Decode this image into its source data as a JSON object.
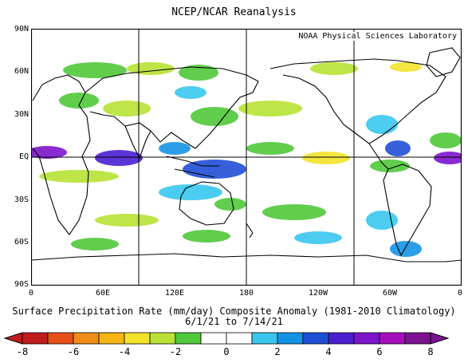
{
  "header": {
    "title": "NCEP/NCAR Reanalysis"
  },
  "map": {
    "lab_label": "NOAA Physical Sciences Laboratory",
    "lat_labels": [
      "90N",
      "60N",
      "30N",
      "EQ",
      "30S",
      "60S",
      "90S"
    ],
    "lon_labels": [
      "0",
      "60E",
      "120E",
      "180",
      "120W",
      "60W",
      "0"
    ],
    "grid": {
      "lon_lines": [
        60,
        180,
        300
      ],
      "lat_lines": [
        0
      ]
    }
  },
  "caption": {
    "line1": "Surface Precipitation Rate (mm/day) Composite Anomaly (1981-2010 Climatology)",
    "line2": "6/1/21  to 7/14/21"
  },
  "colorbar": {
    "tick_labels": [
      "-8",
      "-6",
      "-4",
      "-2",
      "0",
      "2",
      "4",
      "6",
      "8"
    ],
    "colors": [
      "#c01c1c",
      "#e8501a",
      "#f28c18",
      "#f5b412",
      "#f2e32a",
      "#b7e233",
      "#50c83a",
      "#ffffff",
      "#ffffff",
      "#39c6ee",
      "#1493e4",
      "#1f4fd6",
      "#4a1fd2",
      "#7d14cc",
      "#a50ebd",
      "#7a1290"
    ],
    "labels": {
      "dry_colors": [
        "#f2e32a",
        "#b7e233",
        "#50c83a"
      ],
      "wet_colors": [
        "#39c6ee",
        "#1493e4",
        "#1f4fd6",
        "#4a1fd2",
        "#7d14cc",
        "#a50ebd"
      ]
    }
  }
}
